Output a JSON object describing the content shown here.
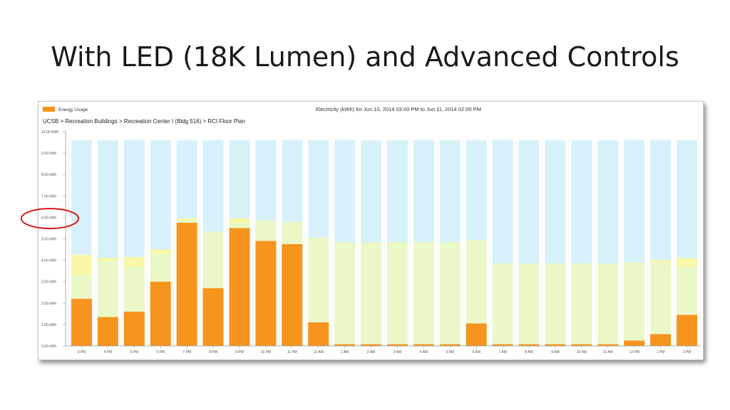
{
  "slide": {
    "title": "With LED (18K Lumen) and Advanced Controls"
  },
  "chart_data": {
    "type": "bar",
    "title": "Electricity (kWh) for Jun 10, 2014 03:00 PM to Jun 11, 2014 02:00 PM",
    "breadcrumb": "UCSB > Recreation Buildings > Recreation Center I (Bldg 516) > RCI Floor Plan",
    "legend": {
      "label": "Energy Usage",
      "color": "#f7941d",
      "placement": "top-left"
    },
    "categories": [
      "3 PM",
      "4 PM",
      "5 PM",
      "6 PM",
      "7 PM",
      "8 PM",
      "9 PM",
      "10 PM",
      "11 PM",
      "12 AM",
      "1 AM",
      "2 AM",
      "3 AM",
      "4 AM",
      "5 AM",
      "6 AM",
      "7 AM",
      "8 AM",
      "9 AM",
      "10 AM",
      "11 AM",
      "12 PM",
      "1 PM",
      "2 PM"
    ],
    "series": [
      {
        "name": "Energy Usage",
        "values": [
          2.2,
          1.35,
          1.6,
          3.0,
          5.75,
          2.7,
          5.5,
          4.9,
          4.75,
          1.1,
          0.08,
          0.08,
          0.08,
          0.08,
          0.08,
          1.05,
          0.08,
          0.08,
          0.08,
          0.08,
          0.08,
          0.25,
          0.55,
          1.45
        ]
      }
    ],
    "band_light_green": [
      3.3,
      3.95,
      3.7,
      4.3,
      5.85,
      5.35,
      5.75,
      5.85,
      5.8,
      5.05,
      4.85,
      4.85,
      4.85,
      4.85,
      4.85,
      4.95,
      3.85,
      3.85,
      3.85,
      3.85,
      3.85,
      3.9,
      3.9,
      3.7
    ],
    "band_yellow": [
      4.25,
      4.1,
      4.15,
      4.5,
      5.95,
      5.35,
      5.95,
      5.85,
      5.8,
      5.05,
      4.85,
      4.85,
      4.85,
      4.85,
      4.85,
      4.95,
      3.85,
      3.85,
      3.85,
      3.85,
      3.85,
      3.9,
      4.0,
      4.1
    ],
    "band_top": 9.6,
    "yticks": [
      {
        "value": 0,
        "label": "0.00 kWh"
      },
      {
        "value": 1,
        "label": "1.00 kWh"
      },
      {
        "value": 2,
        "label": "2.00 kWh"
      },
      {
        "value": 3,
        "label": "3.00 kWh"
      },
      {
        "value": 4,
        "label": "4.00 kWh"
      },
      {
        "value": 5,
        "label": "5.00 kWh"
      },
      {
        "value": 6,
        "label": "6.00 kWh"
      },
      {
        "value": 7,
        "label": "7.00 kWh"
      },
      {
        "value": 8,
        "label": "8.00 kWh"
      },
      {
        "value": 9,
        "label": "9.00 kWh"
      },
      {
        "value": 10,
        "label": "10.00 kWh"
      }
    ],
    "ylim": [
      0,
      10
    ],
    "colors": {
      "usage": "#f7941d",
      "light_green": "#eaf8c8",
      "yellow": "#f9f7a8",
      "light_blue": "#d7f1fb",
      "highlight_circle": "#d7191c"
    },
    "annotation": {
      "type": "circle",
      "target_tick": 6
    }
  }
}
